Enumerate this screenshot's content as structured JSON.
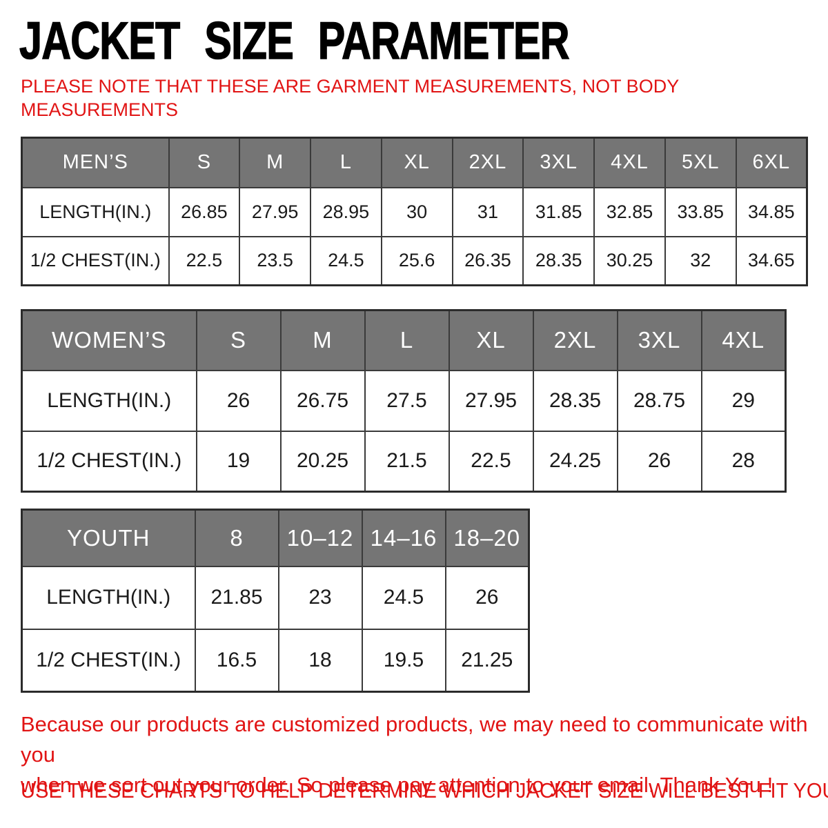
{
  "title": "JACKET SIZE PARAMETER",
  "top_note": {
    "line1": "PLEASE NOTE THAT THESE ARE GARMENT MEASUREMENTS, NOT BODY",
    "line2": "MEASUREMENTS"
  },
  "tables": [
    {
      "id": "mens",
      "name": "MEN’S",
      "sizes": [
        "S",
        "M",
        "L",
        "XL",
        "2XL",
        "3XL",
        "4XL",
        "5XL",
        "6XL"
      ],
      "rows": [
        {
          "label": "LENGTH(IN.)",
          "values": [
            "26.85",
            "27.95",
            "28.95",
            "30",
            "31",
            "31.85",
            "32.85",
            "33.85",
            "34.85"
          ]
        },
        {
          "label": "1/2 CHEST(IN.)",
          "values": [
            "22.5",
            "23.5",
            "24.5",
            "25.6",
            "26.35",
            "28.35",
            "30.25",
            "32",
            "34.65"
          ]
        }
      ]
    },
    {
      "id": "womens",
      "name": "WOMEN’S",
      "sizes": [
        "S",
        "M",
        "L",
        "XL",
        "2XL",
        "3XL",
        "4XL"
      ],
      "rows": [
        {
          "label": "LENGTH(IN.)",
          "values": [
            "26",
            "26.75",
            "27.5",
            "27.95",
            "28.35",
            "28.75",
            "29"
          ]
        },
        {
          "label": "1/2 CHEST(IN.)",
          "values": [
            "19",
            "20.25",
            "21.5",
            "22.5",
            "24.25",
            "26",
            "28"
          ]
        }
      ]
    },
    {
      "id": "youth",
      "name": "YOUTH",
      "sizes": [
        "8",
        "10–12",
        "14–16",
        "18–20"
      ],
      "rows": [
        {
          "label": "LENGTH(IN.)",
          "values": [
            "21.85",
            "23",
            "24.5",
            "26"
          ]
        },
        {
          "label": "1/2 CHEST(IN.)",
          "values": [
            "16.5",
            "18",
            "19.5",
            "21.25"
          ]
        }
      ]
    }
  ],
  "footer": {
    "line1": "Because our products are customized products, we may need to communicate with you",
    "line2": "when we sort out your order. So please pay attention to your email. Thank You !",
    "usage": "USE THESE CHARTS TO HELP DETERMINE WHICH JACKET SIZE WILL BEST FIT YOU."
  },
  "colors": {
    "header_bg": "#757575",
    "header_text": "#ffffff",
    "accent_red": "#e11414",
    "border": "#3a3a3a",
    "body_text": "#1a1a1a"
  }
}
